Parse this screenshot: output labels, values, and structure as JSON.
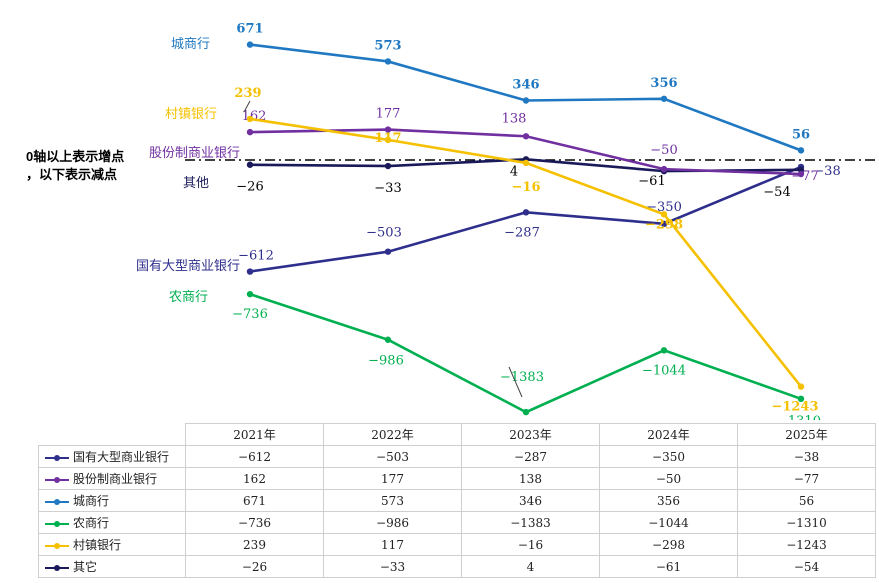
{
  "chart_data": {
    "type": "line",
    "categories": [
      "2021年",
      "2022年",
      "2023年",
      "2024年",
      "2025年"
    ],
    "series": [
      {
        "name": "城商行",
        "color": "#1f78c1",
        "values": [
          671,
          573,
          346,
          356,
          56
        ]
      },
      {
        "name": "村镇银行",
        "color": "#f5c000",
        "values": [
          239,
          117,
          -16,
          -298,
          -1243
        ]
      },
      {
        "name": "股份制商业银行",
        "color": "#7030a0",
        "values": [
          162,
          177,
          138,
          -50,
          -77
        ]
      },
      {
        "name": "其他",
        "color": "#1a1a5a",
        "values": [
          -26,
          -33,
          4,
          -61,
          -54
        ]
      },
      {
        "name": "国有大型商业银行",
        "color": "#2e2e8c",
        "values": [
          -612,
          -503,
          -287,
          -350,
          -38
        ]
      },
      {
        "name": "农商行",
        "color": "#00b050",
        "values": [
          -736,
          -986,
          -1383,
          -1044,
          -1310
        ]
      }
    ],
    "zero_line_note": [
      "0轴以上表示增点",
      "，以下表示减点"
    ],
    "table": {
      "columns": [
        "2021年",
        "2022年",
        "2023年",
        "2024年",
        "2025年"
      ],
      "rows": [
        {
          "label": "国有大型商业银行",
          "color": "#2e2e8c",
          "values": [
            "−612",
            "−503",
            "−287",
            "−350",
            "−38"
          ]
        },
        {
          "label": "股份制商业银行",
          "color": "#7030a0",
          "values": [
            "162",
            "177",
            "138",
            "−50",
            "−77"
          ]
        },
        {
          "label": "城商行",
          "color": "#1f78c1",
          "values": [
            "671",
            "573",
            "346",
            "356",
            "56"
          ]
        },
        {
          "label": "农商行",
          "color": "#00b050",
          "values": [
            "−736",
            "−986",
            "−1383",
            "−1044",
            "−1310"
          ]
        },
        {
          "label": "村镇银行",
          "color": "#f5c000",
          "values": [
            "239",
            "117",
            "−16",
            "−298",
            "−1243"
          ]
        },
        {
          "label": "其它",
          "color": "#1a1a5a",
          "values": [
            "−26",
            "−33",
            "4",
            "−61",
            "−54"
          ]
        }
      ]
    }
  }
}
